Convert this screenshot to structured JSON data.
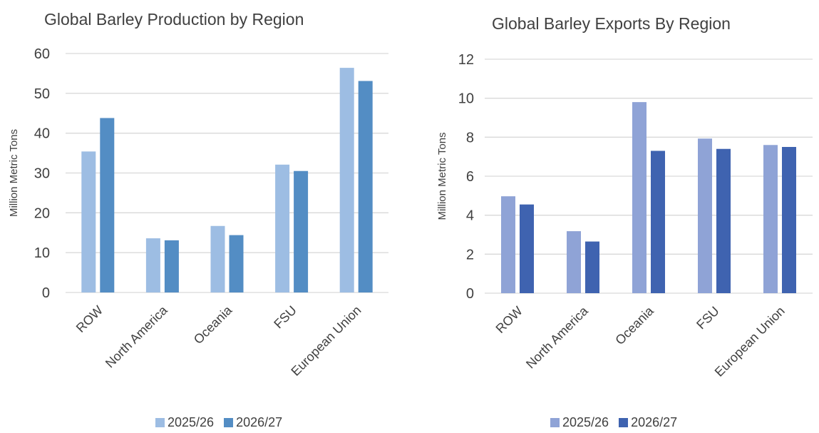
{
  "chart_data": [
    {
      "type": "bar",
      "title": "Global Barley Production by Region",
      "ylabel": "Million Metric Tons",
      "xlabel": "",
      "categories": [
        "ROW",
        "North America",
        "Oceania",
        "FSU",
        "European Union"
      ],
      "ylim": [
        0,
        60
      ],
      "yticks": [
        "0",
        "10",
        "20",
        "30",
        "40",
        "50",
        "60"
      ],
      "series": [
        {
          "name": "2025/26",
          "color": "#9dbde3",
          "values": [
            35.4,
            13.6,
            16.7,
            32.1,
            56.4
          ]
        },
        {
          "name": "2026/27",
          "color": "#538dc4",
          "values": [
            43.8,
            13.1,
            14.4,
            30.5,
            53.1
          ]
        }
      ],
      "grid": true,
      "legend": "bottom"
    },
    {
      "type": "bar",
      "title": "Global Barley Exports By Region",
      "ylabel": "Million Metric Tons",
      "xlabel": "",
      "categories": [
        "ROW",
        "North America",
        "Oceania",
        "FSU",
        "European Union"
      ],
      "ylim": [
        0,
        12
      ],
      "yticks": [
        "0",
        "2",
        "4",
        "6",
        "8",
        "10",
        "12"
      ],
      "series": [
        {
          "name": "2025/26",
          "color": "#8fa3d6",
          "values": [
            4.97,
            3.18,
            9.8,
            7.93,
            7.6
          ]
        },
        {
          "name": "2026/27",
          "color": "#3f63b0",
          "values": [
            4.55,
            2.65,
            7.3,
            7.4,
            7.5
          ]
        }
      ],
      "grid": true,
      "legend": "bottom"
    }
  ]
}
